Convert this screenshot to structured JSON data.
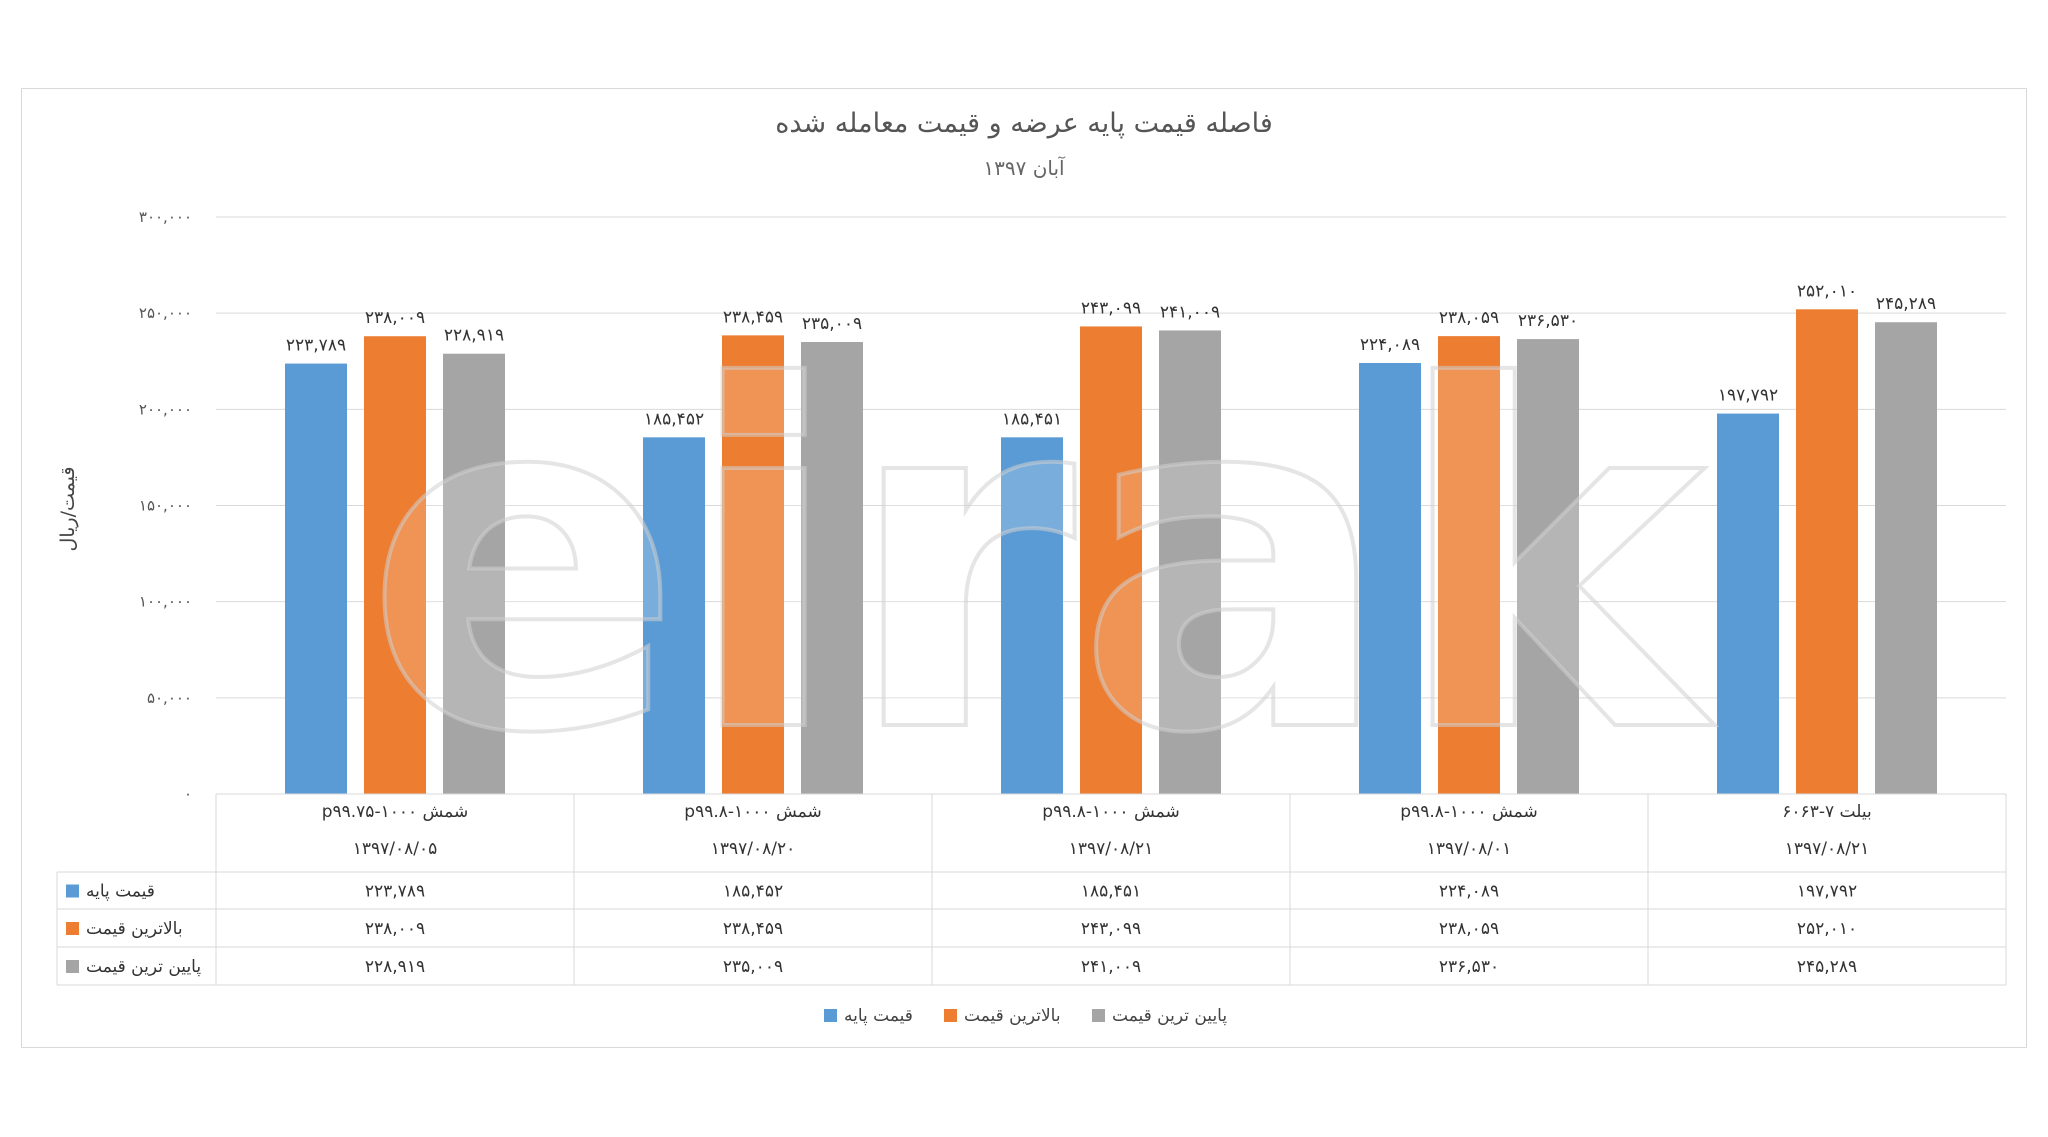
{
  "chart_data": {
    "type": "bar",
    "title": "فاصله قیمت پایه عرضه و قیمت معامله شده",
    "subtitle": "آبان ۱۳۹۷",
    "ylabel": "قیمت/ریال",
    "ylim": [
      0,
      300000
    ],
    "yticks": [
      "۰",
      "۵۰,۰۰۰",
      "۱۰۰,۰۰۰",
      "۱۵۰,۰۰۰",
      "۲۰۰,۰۰۰",
      "۲۵۰,۰۰۰",
      "۳۰۰,۰۰۰"
    ],
    "ytick_values": [
      0,
      50000,
      100000,
      150000,
      200000,
      250000,
      300000
    ],
    "grid": true,
    "legend_position": "bottom",
    "categories": [
      {
        "name": "شمش ۱۰۰۰-p۹۹.۷۵",
        "date": "۱۳۹۷/۰۸/۰۵"
      },
      {
        "name": "شمش ۱۰۰۰-p۹۹.۸",
        "date": "۱۳۹۷/۰۸/۲۰"
      },
      {
        "name": "شمش ۱۰۰۰-p۹۹.۸",
        "date": "۱۳۹۷/۰۸/۲۱"
      },
      {
        "name": "شمش ۱۰۰۰-p۹۹.۸",
        "date": "۱۳۹۷/۰۸/۰۱"
      },
      {
        "name": "بیلت ۷-۶۰۶۳",
        "date": "۱۳۹۷/۰۸/۲۱"
      }
    ],
    "series": [
      {
        "name": "قیمت پایه",
        "color": "#5b9bd5",
        "values": [
          223789,
          185452,
          185451,
          224089,
          197792
        ],
        "labels": [
          "۲۲۳,۷۸۹",
          "۱۸۵,۴۵۲",
          "۱۸۵,۴۵۱",
          "۲۲۴,۰۸۹",
          "۱۹۷,۷۹۲"
        ]
      },
      {
        "name": "بالاترین قیمت",
        "color": "#ed7d31",
        "values": [
          238009,
          238459,
          243099,
          238059,
          252010
        ],
        "labels": [
          "۲۳۸,۰۰۹",
          "۲۳۸,۴۵۹",
          "۲۴۳,۰۹۹",
          "۲۳۸,۰۵۹",
          "۲۵۲,۰۱۰"
        ]
      },
      {
        "name": "پایین ترین قیمت",
        "color": "#a5a5a5",
        "values": [
          228919,
          235009,
          241009,
          236530,
          245289
        ],
        "labels": [
          "۲۲۸,۹۱۹",
          "۲۳۵,۰۰۹",
          "۲۴۱,۰۰۹",
          "۲۳۶,۵۳۰",
          "۲۴۵,۲۸۹"
        ]
      }
    ]
  },
  "watermark": "eirak"
}
